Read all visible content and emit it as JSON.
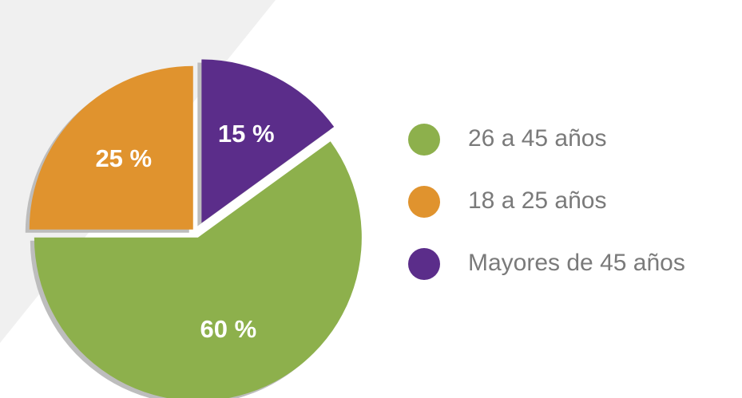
{
  "chart_data": {
    "type": "pie",
    "categories": [
      "26 a 45 años",
      "18 a 25 años",
      "Mayores de  45 años"
    ],
    "values": [
      60,
      25,
      15
    ],
    "value_labels": [
      "60 %",
      "25 %",
      "15 %"
    ],
    "colors": [
      "#8db04c",
      "#e0932e",
      "#5b2d8a"
    ],
    "legend": "right"
  }
}
